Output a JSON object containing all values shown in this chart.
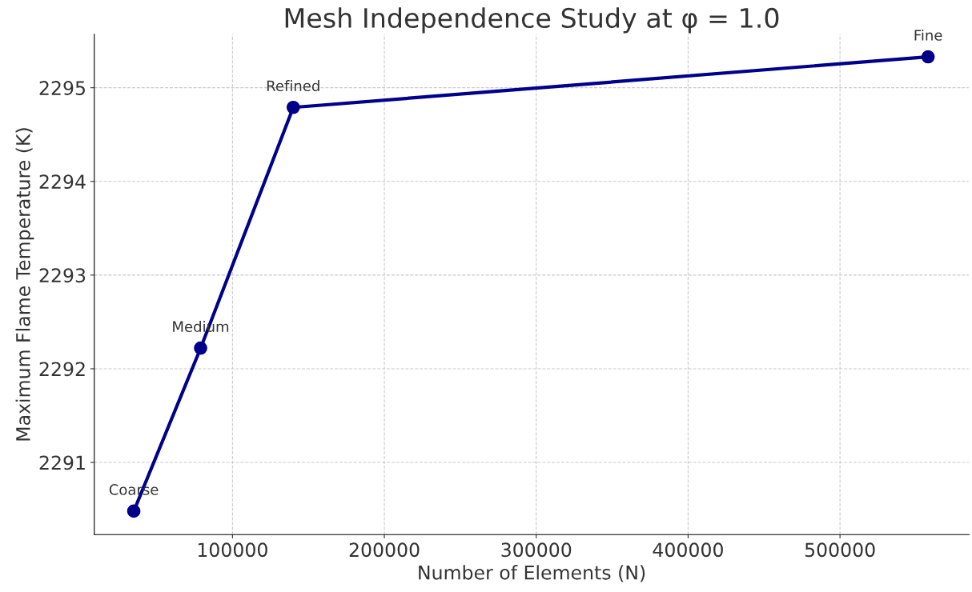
{
  "chart_data": {
    "type": "line",
    "title": "Mesh Independence Study at φ = 1.0",
    "xlabel": "Number of Elements (N)",
    "ylabel": "Maximum Flame Temperature (K)",
    "x": [
      35000,
      79000,
      140000,
      558000
    ],
    "series": [
      {
        "color": "#00008b",
        "values": [
          2290.48,
          2292.22,
          2294.79,
          2295.33
        ]
      }
    ],
    "annotations": [
      {
        "text": "Coarse",
        "x": 35000,
        "y": 2290.48
      },
      {
        "text": "Medium",
        "x": 79000,
        "y": 2292.22
      },
      {
        "text": "Refined",
        "x": 140000,
        "y": 2294.79
      },
      {
        "text": "Fine",
        "x": 558000,
        "y": 2295.33
      }
    ],
    "xlim": [
      9000,
      585000
    ],
    "xticks": [
      100000,
      200000,
      300000,
      400000,
      500000
    ],
    "ylim": [
      2290.23,
      2295.57
    ],
    "yticks": [
      2291,
      2292,
      2293,
      2294,
      2295
    ],
    "grid": true,
    "marker": "circle",
    "line_style": "solid"
  }
}
